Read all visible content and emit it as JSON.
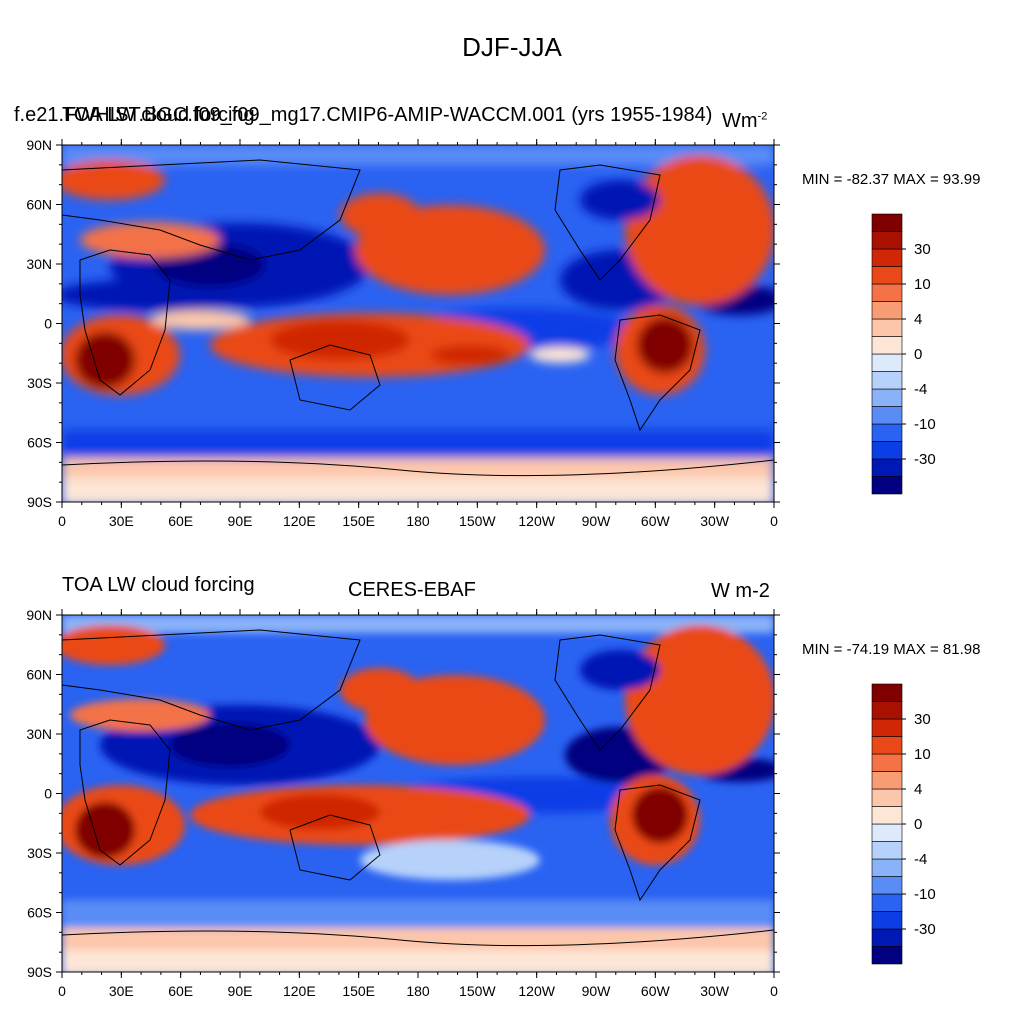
{
  "figure": {
    "title": "DJF-JJA"
  },
  "panels": [
    {
      "left_title": "f.e21.FWHIST.BGC.f09_f09_mg17.CMIP6-AMIP-WACCM.001 (yrs 1955-1984)",
      "overlay_title": "TOA LW cloud forcing",
      "center_title": "",
      "units": "Wm",
      "units_sup": "-2",
      "min_max": "MIN = -82.37 MAX =  93.99"
    },
    {
      "left_title": "TOA LW cloud forcing",
      "center_title": "CERES-EBAF",
      "units": "W m-2",
      "min_max": "MIN = -74.19 MAX =  81.98"
    }
  ],
  "axes": {
    "lat_labels": [
      "90N",
      "60N",
      "30N",
      "0",
      "30S",
      "60S",
      "90S"
    ],
    "lon_labels": [
      "0",
      "30E",
      "60E",
      "90E",
      "120E",
      "150E",
      "180",
      "150W",
      "120W",
      "90W",
      "60W",
      "30W",
      "0"
    ]
  },
  "colorbar": {
    "colors": [
      "#000080",
      "#0018b4",
      "#0c3ee6",
      "#2a62f2",
      "#5a8cf6",
      "#8ab2f8",
      "#b6d2fa",
      "#ddeafc",
      "#fde6d6",
      "#fcc6aa",
      "#f89c74",
      "#f47246",
      "#ea4818",
      "#d02806",
      "#a81000",
      "#800000"
    ],
    "labels": [
      "30",
      "10",
      "4",
      "0",
      "-4",
      "-10",
      "-30"
    ]
  },
  "chart_data": [
    {
      "type": "heatmap",
      "title": "f.e21.FWHIST.BGC.f09_f09_mg17.CMIP6-AMIP-WACCM.001 (yrs 1955-1984)",
      "subtitle": "TOA LW cloud forcing",
      "units": "Wm-2",
      "x": "longitude 0 to 360",
      "y": "latitude -90 to 90",
      "min": -82.37,
      "max": 93.99,
      "contour_levels": [
        -50,
        -40,
        -30,
        -20,
        -15,
        -10,
        -6,
        -4,
        -2,
        0,
        2,
        4,
        6,
        10,
        15,
        20,
        30,
        40
      ]
    },
    {
      "type": "heatmap",
      "title": "TOA LW cloud forcing",
      "subtitle": "CERES-EBAF",
      "units": "W m-2",
      "x": "longitude 0 to 360",
      "y": "latitude -90 to 90",
      "min": -74.19,
      "max": 81.98,
      "contour_levels": [
        -50,
        -40,
        -30,
        -20,
        -15,
        -10,
        -6,
        -4,
        -2,
        0,
        2,
        4,
        6,
        10,
        15,
        20,
        30,
        40
      ]
    }
  ]
}
